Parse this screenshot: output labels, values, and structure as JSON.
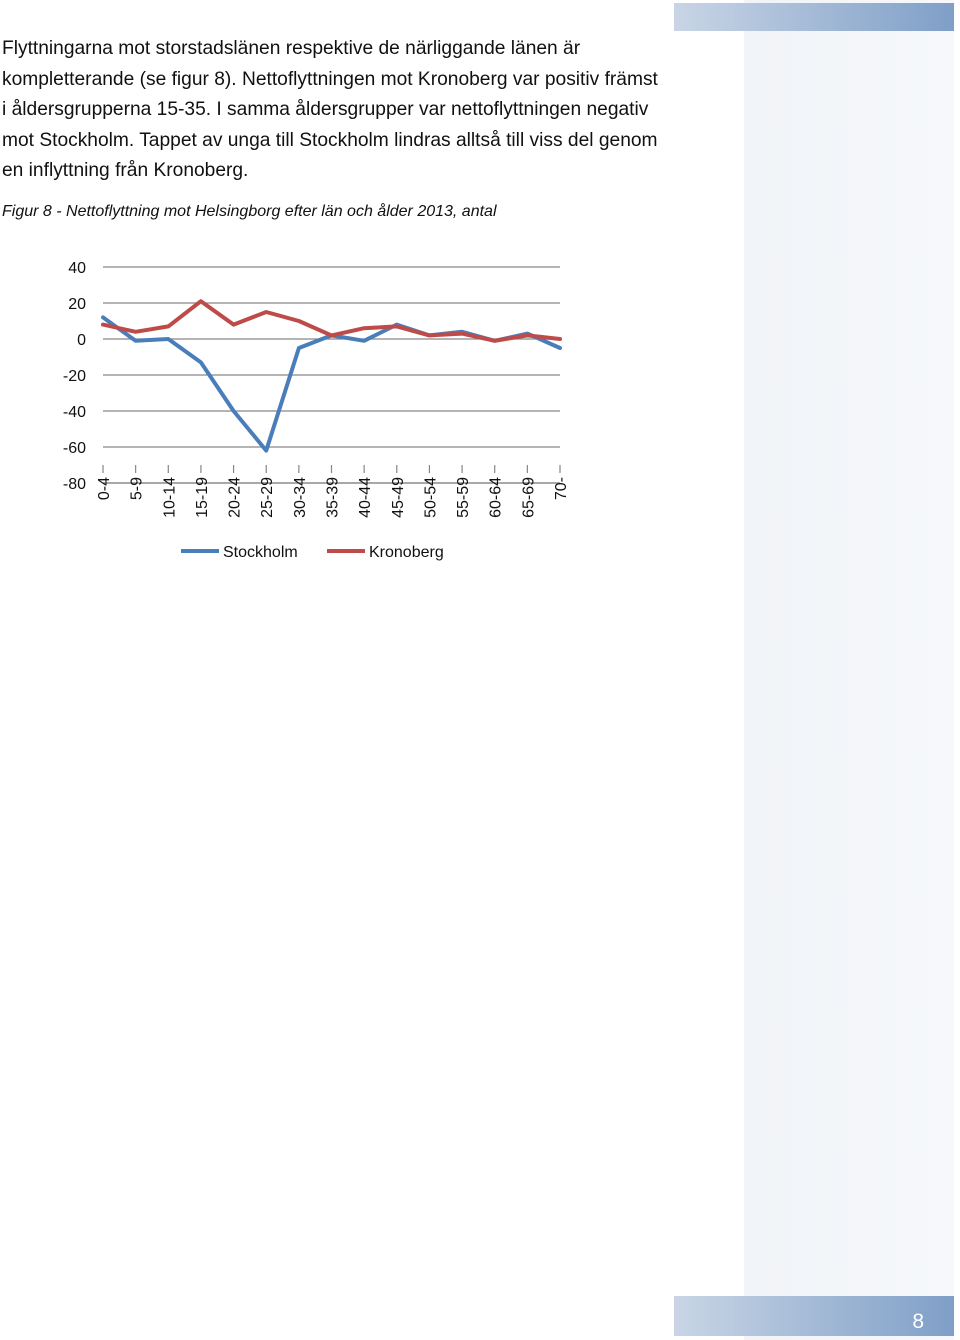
{
  "body_text": "Flyttningarna mot storstadslänen respektive de närliggande länen är kompletterande (se figur 8). Nettoflyttningen mot Kronoberg var positiv främst i åldersgrupperna 15-35. I samma åldersgrupper var nettoflyttningen negativ mot Stockholm. Tappet av unga till Stockholm lindras alltså till viss del genom en inflyttning från Kronoberg.",
  "caption": "Figur 8 - Nettoflyttning mot Helsingborg efter län och ålder 2013, antal",
  "page_number": "8",
  "chart_data": {
    "type": "line",
    "categories": [
      "0-4",
      "5-9",
      "10-14",
      "15-19",
      "20-24",
      "25-29",
      "30-34",
      "35-39",
      "40-44",
      "45-49",
      "50-54",
      "55-59",
      "60-64",
      "65-69",
      "70-"
    ],
    "ylim": [
      -80,
      40
    ],
    "yticks": [
      "40",
      "20",
      "0",
      "-20",
      "-40",
      "-60",
      "-80"
    ],
    "grid": true,
    "legend_position": "bottom",
    "series": [
      {
        "name": "Stockholm",
        "color": "#4a7ebb",
        "values": [
          12,
          -1,
          0,
          -13,
          -40,
          -62,
          -5,
          2,
          -1,
          8,
          2,
          4,
          -1,
          3,
          -5
        ]
      },
      {
        "name": "Kronoberg",
        "color": "#be4b48",
        "values": [
          8,
          4,
          7,
          21,
          8,
          15,
          10,
          2,
          6,
          7,
          2,
          3,
          -1,
          2,
          0
        ]
      }
    ]
  }
}
